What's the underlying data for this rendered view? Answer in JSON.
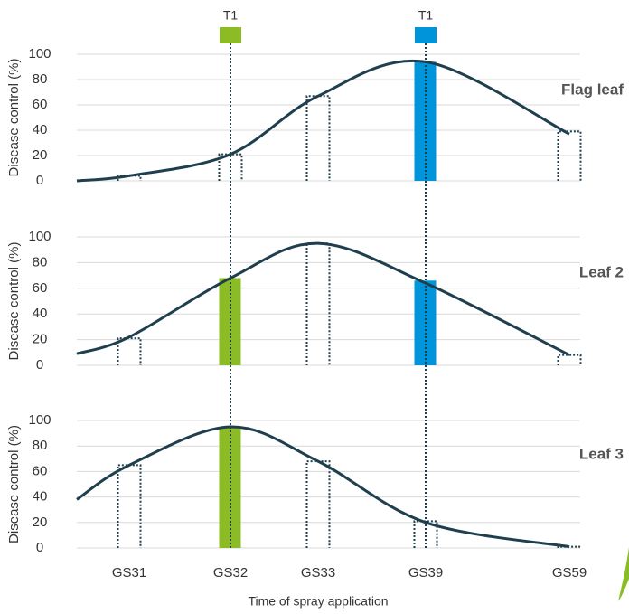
{
  "chart_data": [
    {
      "type": "bar",
      "ylabel": "Disease control (%)",
      "panel_label": "Flag leaf",
      "categories": [
        null,
        "GS31",
        "GS32",
        "GS33",
        "GS39",
        "GS59"
      ],
      "values": [
        null,
        4,
        21,
        67,
        94,
        39
      ],
      "bar_colors": [
        null,
        null,
        null,
        null,
        "#0095da",
        null
      ],
      "curve": [
        0,
        4,
        21,
        67,
        94,
        37
      ],
      "ylim": [
        0,
        100
      ],
      "yticks": [
        0,
        20,
        40,
        60,
        80,
        100
      ],
      "grid": true,
      "curve_color": "#1f3f4f"
    },
    {
      "type": "bar",
      "ylabel": "Disease control (%)",
      "panel_label": "Leaf 2",
      "categories": [
        null,
        "GS31",
        "GS32",
        "GS33",
        "GS39",
        "GS59"
      ],
      "values": [
        null,
        21,
        68,
        95,
        66,
        8
      ],
      "bar_colors": [
        null,
        null,
        "#8cbc25",
        null,
        "#0095da",
        null
      ],
      "curve": [
        9,
        22,
        68,
        95,
        64,
        8
      ],
      "ylim": [
        0,
        100
      ],
      "yticks": [
        0,
        20,
        40,
        60,
        80,
        100
      ],
      "grid": true,
      "curve_color": "#1f3f4f"
    },
    {
      "type": "bar",
      "ylabel": "Disease control (%)",
      "panel_label": "Leaf 3",
      "categories": [
        null,
        "GS31",
        "GS32",
        "GS33",
        "GS39",
        "GS59"
      ],
      "values": [
        null,
        65,
        95,
        68,
        21,
        1
      ],
      "bar_colors": [
        null,
        null,
        "#8cbc25",
        null,
        null,
        null
      ],
      "curve": [
        38,
        65,
        95,
        68,
        20,
        1
      ],
      "ylim": [
        0,
        100
      ],
      "yticks": [
        0,
        20,
        40,
        60,
        80,
        100
      ],
      "grid": true,
      "curve_color": "#1f3f4f",
      "xlabel": "Time of spray application"
    }
  ],
  "timings": [
    {
      "label": "T1",
      "category": "GS32",
      "color": "#8cbc25"
    },
    {
      "label": "T1",
      "category": "GS39",
      "color": "#0095da"
    }
  ]
}
